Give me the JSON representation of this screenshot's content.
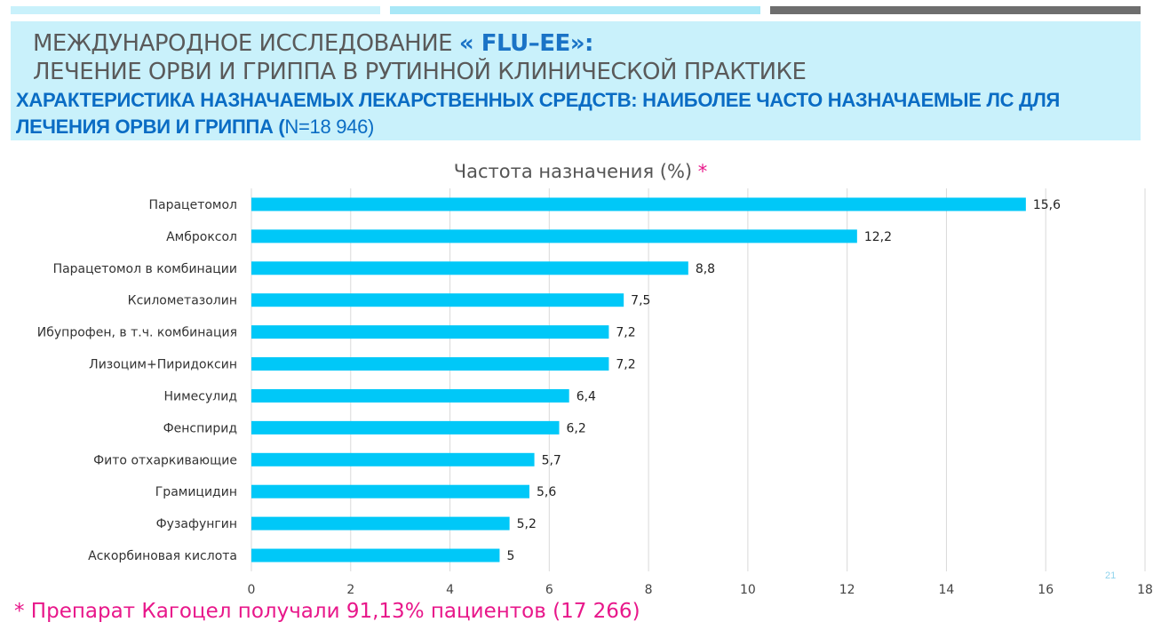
{
  "header": {
    "line1_prefix": "МЕЖДУНАРОДНОЕ ИССЛЕДОВАНИЕ ",
    "line1_accent": "« FLU–EE»:",
    "line2": "ЛЕЧЕНИЕ ОРВИ И ГРИППА В РУТИННОЙ КЛИНИЧЕСКОЙ ПРАКТИКЕ",
    "subtitle_bold": "ХАРАКТЕРИСТИКА НАЗНАЧАЕМЫХ ЛЕКАРСТВЕННЫХ СРЕДСТВ: НАИБОЛЕЕ ЧАСТО НАЗНАЧАЕМЫЕ ЛС ДЛЯ ЛЕЧЕНИЯ ОРВИ И ГРИППА (",
    "subtitle_n": "N=18 946)"
  },
  "colors": {
    "bar": "#00c8f8",
    "topbar_light": "#c9f1fb",
    "topbar_mid": "#a9e8f7",
    "topbar_dark": "#6e6e6e",
    "accent_pink": "#e8178a"
  },
  "chart_data": {
    "type": "bar",
    "orientation": "horizontal",
    "title": "Частота назначения (%)",
    "title_marker": "*",
    "categories": [
      "Парацетомол",
      "Амброксол",
      "Парацетомол в комбинации",
      "Ксилометазолин",
      "Ибупрофен, в т.ч. комбинация",
      "Лизоцим+Пиридоксин",
      "Нимесулид",
      "Фенспирид",
      "Фито отхаркивающие",
      "Грамицидин",
      "Фузафунгин",
      "Аскорбиновая кислота"
    ],
    "values": [
      15.6,
      12.2,
      8.8,
      7.5,
      7.2,
      7.2,
      6.4,
      6.2,
      5.7,
      5.6,
      5.2,
      5
    ],
    "value_labels": [
      "15,6",
      "12,2",
      "8,8",
      "7,5",
      "7,2",
      "7,2",
      "6,4",
      "6,2",
      "5,7",
      "5,6",
      "5,2",
      "5"
    ],
    "xlim": [
      0,
      18
    ],
    "xticks": [
      0,
      2,
      4,
      6,
      8,
      10,
      12,
      14,
      16,
      18
    ],
    "grid": true,
    "legend": "none"
  },
  "page_number": "21",
  "footnote": "* Препарат Кагоцел получали 91,13% пациентов (17 266)"
}
